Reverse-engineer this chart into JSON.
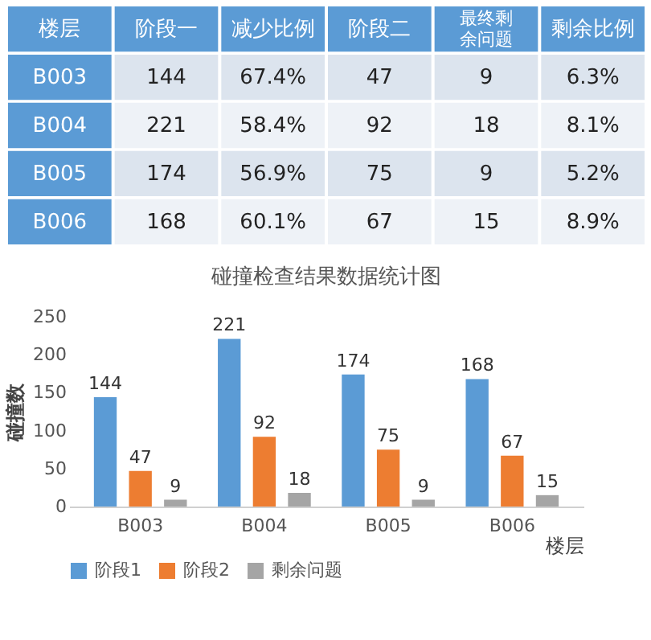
{
  "chart_data": [
    {
      "type": "heatmap",
      "ylabel": "楼层",
      "categories": [
        "阶段一",
        "减少比例",
        "阶段二",
        "最终剩余问题",
        "剩余比例"
      ],
      "y_categories": [
        "B003",
        "B004",
        "B005",
        "B006"
      ],
      "cells": [
        [
          144,
          67.4,
          47,
          9,
          6.3
        ],
        [
          221,
          58.4,
          92,
          18,
          8.1
        ],
        [
          174,
          56.9,
          75,
          9,
          5.2
        ],
        [
          168,
          60.1,
          67,
          15,
          8.9
        ]
      ],
      "cell_labels": [
        [
          "144",
          "67.4%",
          "47",
          "9",
          "6.3%"
        ],
        [
          "221",
          "58.4%",
          "92",
          "18",
          "8.1%"
        ],
        [
          "174",
          "56.9%",
          "75",
          "9",
          "5.2%"
        ],
        [
          "168",
          "60.1%",
          "67",
          "15",
          "8.9%"
        ]
      ]
    },
    {
      "type": "bar",
      "title": "碰撞检查结果数据统计图",
      "xlabel": "楼层",
      "ylabel": "碰撞数",
      "categories": [
        "B003",
        "B004",
        "B005",
        "B006"
      ],
      "series": [
        {
          "name": "阶段1",
          "color": "#5b9bd5",
          "values": [
            144,
            221,
            174,
            168
          ]
        },
        {
          "name": "阶段2",
          "color": "#ed7d31",
          "values": [
            47,
            92,
            75,
            67
          ]
        },
        {
          "name": "剩余问题",
          "color": "#a5a5a5",
          "values": [
            9,
            18,
            9,
            15
          ]
        }
      ],
      "ylim": [
        0,
        250
      ],
      "yticks": [
        0,
        50,
        100,
        150,
        200,
        250
      ],
      "grid": false,
      "data_labels": true,
      "legend": "bottom"
    }
  ]
}
